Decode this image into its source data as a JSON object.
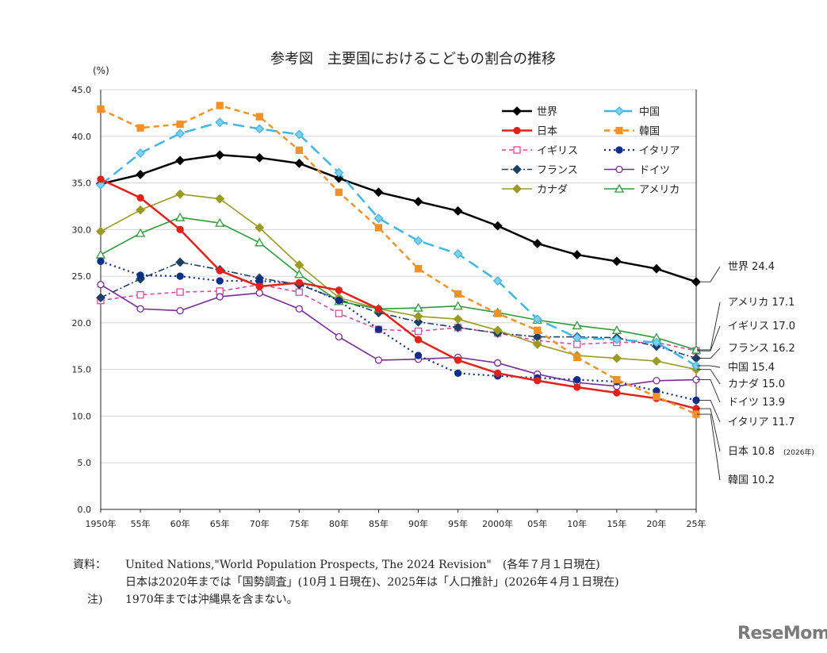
{
  "chart_data": {
    "type": "line",
    "title": "参考図　主要国におけるこどもの割合の推移",
    "ylabel": "(%)",
    "xlabel": "",
    "ylim": [
      0,
      45
    ],
    "yticks": [
      "0.0",
      "5.0",
      "10.0",
      "15.0",
      "20.0",
      "25.0",
      "30.0",
      "35.0",
      "40.0",
      "45.0"
    ],
    "categories": [
      "1950年",
      "55年",
      "60年",
      "65年",
      "70年",
      "75年",
      "80年",
      "85年",
      "90年",
      "95年",
      "2000年",
      "05年",
      "10年",
      "15年",
      "20年",
      "25年"
    ],
    "grid": true,
    "legend_position": "top-right",
    "series": [
      {
        "name": "世界",
        "color": "#000000",
        "dash": "",
        "marker": "diamond",
        "filled": true,
        "width": 2.5,
        "values": [
          34.9,
          35.9,
          37.4,
          38.0,
          37.7,
          37.1,
          35.5,
          34.0,
          33.0,
          32.0,
          30.4,
          28.5,
          27.3,
          26.6,
          25.8,
          24.4
        ]
      },
      {
        "name": "中国",
        "color": "#41b6e6",
        "dash": "14,7",
        "marker": "diamond",
        "filled": true,
        "fill": "#7fcfee",
        "width": 2.5,
        "values": [
          34.8,
          38.2,
          40.3,
          41.5,
          40.8,
          40.2,
          36.1,
          31.2,
          28.8,
          27.4,
          24.5,
          20.4,
          18.4,
          18.2,
          17.9,
          15.4
        ]
      },
      {
        "name": "日本",
        "color": "#e32119",
        "dash": "",
        "marker": "circle",
        "filled": true,
        "width": 2.5,
        "values": [
          35.4,
          33.4,
          30.0,
          25.6,
          23.9,
          24.3,
          23.5,
          21.5,
          18.2,
          16.0,
          14.6,
          13.8,
          13.1,
          12.5,
          11.9,
          10.8
        ]
      },
      {
        "name": "韓国",
        "color": "#f39127",
        "dash": "7,5",
        "marker": "square",
        "filled": true,
        "width": 2.5,
        "values": [
          42.9,
          40.9,
          41.3,
          43.3,
          42.1,
          38.5,
          34.0,
          30.2,
          25.8,
          23.1,
          21.0,
          19.2,
          16.3,
          13.9,
          12.1,
          10.2
        ]
      },
      {
        "name": "イギリス",
        "color": "#e8449b",
        "dash": "5,4",
        "marker": "square",
        "filled": false,
        "width": 1.6,
        "values": [
          22.4,
          23.0,
          23.3,
          23.4,
          24.1,
          23.3,
          21.0,
          19.3,
          19.1,
          19.5,
          18.9,
          18.1,
          17.7,
          17.9,
          17.9,
          17.0
        ]
      },
      {
        "name": "イタリア",
        "color": "#0b2f8a",
        "dash": "2,4",
        "marker": "circle",
        "filled": true,
        "width": 2.2,
        "values": [
          26.6,
          25.1,
          25.0,
          24.5,
          24.5,
          24.2,
          22.4,
          19.3,
          16.5,
          14.6,
          14.3,
          14.1,
          13.9,
          13.7,
          12.7,
          11.7
        ]
      },
      {
        "name": "フランス",
        "color": "#1c3f66",
        "dash": "8,3,2,3",
        "marker": "diamond",
        "filled": true,
        "width": 1.6,
        "values": [
          22.7,
          24.7,
          26.5,
          25.7,
          24.8,
          24.1,
          22.5,
          21.1,
          20.1,
          19.5,
          18.9,
          18.5,
          18.5,
          18.4,
          17.5,
          16.2
        ]
      },
      {
        "name": "ドイツ",
        "color": "#7a2a9c",
        "dash": "",
        "marker": "circle",
        "filled": false,
        "width": 1.6,
        "values": [
          24.1,
          21.5,
          21.3,
          22.8,
          23.2,
          21.5,
          18.5,
          16.0,
          16.1,
          16.3,
          15.7,
          14.5,
          13.6,
          13.2,
          13.8,
          13.9
        ]
      },
      {
        "name": "カナダ",
        "color": "#9b9b24",
        "dash": "",
        "marker": "diamond",
        "filled": true,
        "width": 1.6,
        "values": [
          29.8,
          32.1,
          33.8,
          33.3,
          30.2,
          26.2,
          22.7,
          21.5,
          20.7,
          20.4,
          19.2,
          17.7,
          16.5,
          16.2,
          15.9,
          15.0
        ]
      },
      {
        "name": "アメリカ",
        "color": "#2e9b3b",
        "dash": "",
        "marker": "triangle",
        "filled": false,
        "width": 1.6,
        "values": [
          27.3,
          29.6,
          31.3,
          30.7,
          28.6,
          25.2,
          22.3,
          21.5,
          21.6,
          21.8,
          21.1,
          20.3,
          19.7,
          19.2,
          18.4,
          17.1
        ]
      }
    ],
    "end_labels": [
      {
        "series": "世界",
        "text": "世界 24.4",
        "note": ""
      },
      {
        "series": "アメリカ",
        "text": "アメリカ 17.1",
        "note": ""
      },
      {
        "series": "イギリス",
        "text": "イギリス 17.0",
        "note": ""
      },
      {
        "series": "フランス",
        "text": "フランス 16.2",
        "note": ""
      },
      {
        "series": "中国",
        "text": "中国 15.4",
        "note": ""
      },
      {
        "series": "カナダ",
        "text": "カナダ 15.0",
        "note": ""
      },
      {
        "series": "ドイツ",
        "text": "ドイツ 13.9",
        "note": ""
      },
      {
        "series": "イタリア",
        "text": "イタリア 11.7",
        "note": ""
      },
      {
        "series": "日本",
        "text": "日本 10.8",
        "note": "(2026年)"
      },
      {
        "series": "韓国",
        "text": "韓国 10.2",
        "note": ""
      }
    ]
  },
  "notes": {
    "source_label": "資料：",
    "source_line1": "United Nations,\"World Population Prospects, The 2024 Revision\"　(各年７月１日現在)",
    "source_line2": "日本は2020年までは「国勢調査」(10月１日現在)、2025年は「人口推計」(2026年４月１日現在)",
    "note_label": "注)",
    "note_line": "1970年までは沖縄県を含まない。"
  },
  "watermark": "ReseMom"
}
